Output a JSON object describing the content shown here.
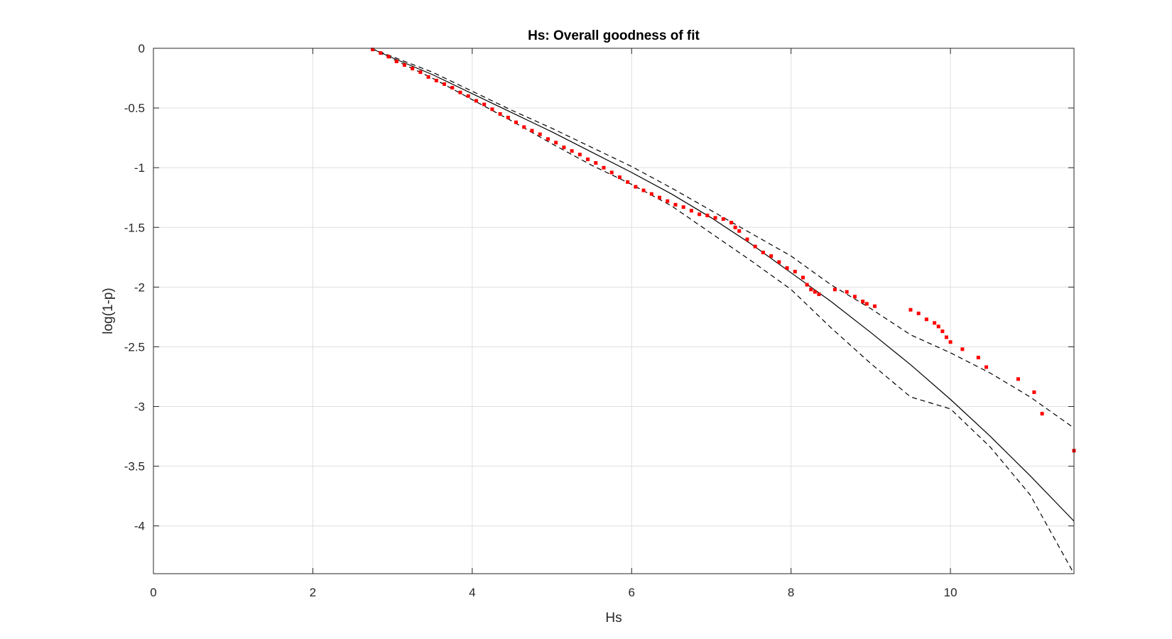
{
  "chart_data": {
    "type": "line",
    "title": "Hs: Overall goodness of fit",
    "xlabel": "Hs",
    "ylabel": "log(1-p)",
    "xlim": [
      0,
      11.55
    ],
    "ylim": [
      -4.4,
      0
    ],
    "xticks": [
      0,
      2,
      4,
      6,
      8,
      10
    ],
    "xtick_labels": [
      "0",
      "2",
      "4",
      "6",
      "8",
      "10"
    ],
    "yticks": [
      0,
      -0.5,
      -1,
      -1.5,
      -2,
      -2.5,
      -3,
      -3.5,
      -4
    ],
    "ytick_labels": [
      "0",
      "-0.5",
      "-1",
      "-1.5",
      "-2",
      "-2.5",
      "-3",
      "-3.5",
      "-4"
    ],
    "grid": true,
    "colors": {
      "points": "#ff0000",
      "fit": "#000000",
      "bounds": "#000000",
      "grid": "#dfdfdf",
      "axes": "#262626"
    },
    "series": [
      {
        "style": "solid",
        "x": [
          2.73,
          3.0,
          3.5,
          4.0,
          4.5,
          5.0,
          5.5,
          6.0,
          6.5,
          7.0,
          7.5,
          8.0,
          8.5,
          9.0,
          9.5,
          10.0,
          10.5,
          11.0,
          11.55
        ],
        "y": [
          0,
          -0.08,
          -0.22,
          -0.38,
          -0.54,
          -0.7,
          -0.87,
          -1.04,
          -1.22,
          -1.42,
          -1.64,
          -1.88,
          -2.12,
          -2.38,
          -2.65,
          -2.94,
          -3.25,
          -3.58,
          -3.96
        ]
      },
      {
        "style": "dashed",
        "x": [
          2.73,
          3.0,
          3.5,
          4.0,
          4.5,
          5.0,
          5.5,
          6.0,
          6.5,
          7.0,
          7.5,
          8.0,
          8.5,
          9.0,
          9.5,
          10.0,
          10.5,
          11.0,
          11.55
        ],
        "y": [
          0,
          -0.09,
          -0.25,
          -0.43,
          -0.61,
          -0.8,
          -0.98,
          -1.14,
          -1.32,
          -1.55,
          -1.78,
          -2.02,
          -2.34,
          -2.64,
          -2.92,
          -3.02,
          -3.34,
          -3.74,
          -4.4
        ]
      },
      {
        "style": "dashed",
        "x": [
          2.73,
          3.0,
          3.5,
          4.0,
          4.5,
          5.0,
          5.5,
          6.0,
          6.5,
          7.0,
          7.5,
          8.0,
          8.5,
          9.0,
          9.5,
          10.0,
          10.5,
          11.0,
          11.55
        ],
        "y": [
          0,
          -0.07,
          -0.2,
          -0.36,
          -0.52,
          -0.67,
          -0.83,
          -0.99,
          -1.17,
          -1.36,
          -1.55,
          -1.74,
          -1.98,
          -2.18,
          -2.4,
          -2.55,
          -2.72,
          -2.92,
          -3.18
        ]
      },
      {
        "style": "points",
        "x": [
          2.75,
          2.85,
          2.95,
          3.05,
          3.15,
          3.25,
          3.35,
          3.45,
          3.55,
          3.65,
          3.75,
          3.85,
          3.95,
          4.05,
          4.15,
          4.25,
          4.35,
          4.45,
          4.55,
          4.65,
          4.75,
          4.85,
          4.95,
          5.05,
          5.15,
          5.25,
          5.35,
          5.45,
          5.55,
          5.65,
          5.75,
          5.85,
          5.95,
          6.05,
          6.15,
          6.25,
          6.35,
          6.45,
          6.55,
          6.65,
          6.75,
          6.85,
          6.95,
          7.05,
          7.15,
          7.25,
          7.3,
          7.35,
          7.45,
          7.55,
          7.65,
          7.75,
          7.85,
          7.95,
          8.05,
          8.15,
          8.2,
          8.25,
          8.3,
          8.35,
          8.55,
          8.7,
          8.8,
          8.9,
          8.95,
          9.05,
          9.5,
          9.6,
          9.7,
          9.8,
          9.85,
          9.9,
          9.95,
          10.0,
          10.15,
          10.35,
          10.45,
          10.85,
          11.05,
          11.15,
          11.55
        ],
        "y": [
          -0.01,
          -0.04,
          -0.07,
          -0.11,
          -0.14,
          -0.17,
          -0.2,
          -0.24,
          -0.27,
          -0.3,
          -0.33,
          -0.37,
          -0.4,
          -0.44,
          -0.47,
          -0.51,
          -0.55,
          -0.58,
          -0.62,
          -0.66,
          -0.69,
          -0.72,
          -0.76,
          -0.79,
          -0.83,
          -0.86,
          -0.89,
          -0.93,
          -0.96,
          -1.0,
          -1.04,
          -1.08,
          -1.12,
          -1.16,
          -1.19,
          -1.22,
          -1.25,
          -1.28,
          -1.31,
          -1.33,
          -1.36,
          -1.39,
          -1.4,
          -1.42,
          -1.43,
          -1.46,
          -1.5,
          -1.53,
          -1.6,
          -1.66,
          -1.71,
          -1.74,
          -1.79,
          -1.84,
          -1.87,
          -1.92,
          -1.98,
          -2.02,
          -2.04,
          -2.06,
          -2.02,
          -2.04,
          -2.08,
          -2.12,
          -2.14,
          -2.16,
          -2.19,
          -2.22,
          -2.27,
          -2.3,
          -2.33,
          -2.37,
          -2.42,
          -2.46,
          -2.52,
          -2.59,
          -2.67,
          -2.77,
          -2.88,
          -3.06,
          -3.37
        ]
      }
    ]
  }
}
